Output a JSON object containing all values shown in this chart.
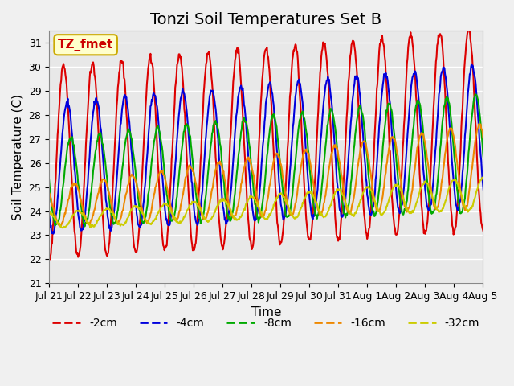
{
  "title": "Tonzi Soil Temperatures Set B",
  "xlabel": "Time",
  "ylabel": "Soil Temperature (C)",
  "ylim": [
    21.0,
    31.5
  ],
  "yticks": [
    21.0,
    22.0,
    23.0,
    24.0,
    25.0,
    26.0,
    27.0,
    28.0,
    29.0,
    30.0,
    31.0
  ],
  "xtick_labels": [
    "Jul 21",
    "Jul 22",
    "Jul 23",
    "Jul 24",
    "Jul 25",
    "Jul 26",
    "Jul 27",
    "Jul 28",
    "Jul 29",
    "Jul 30",
    "Jul 31",
    "Aug 1",
    "Aug 2",
    "Aug 3",
    "Aug 4",
    "Aug 5"
  ],
  "label_box": "TZ_fmet",
  "label_box_color": "#ffffcc",
  "label_box_edge_color": "#ccaa00",
  "label_box_text_color": "#cc0000",
  "series": [
    {
      "label": "-2cm",
      "color": "#dd0000",
      "lw": 1.5
    },
    {
      "label": "-4cm",
      "color": "#0000dd",
      "lw": 1.5
    },
    {
      "label": "-8cm",
      "color": "#00aa00",
      "lw": 1.5
    },
    {
      "label": "-16cm",
      "color": "#ee8800",
      "lw": 1.5
    },
    {
      "label": "-32cm",
      "color": "#cccc00",
      "lw": 1.5
    }
  ],
  "bg_color": "#e8e8e8",
  "grid_color": "#ffffff",
  "title_fontsize": 14,
  "axis_label_fontsize": 11,
  "tick_fontsize": 9,
  "legend_fontsize": 10
}
